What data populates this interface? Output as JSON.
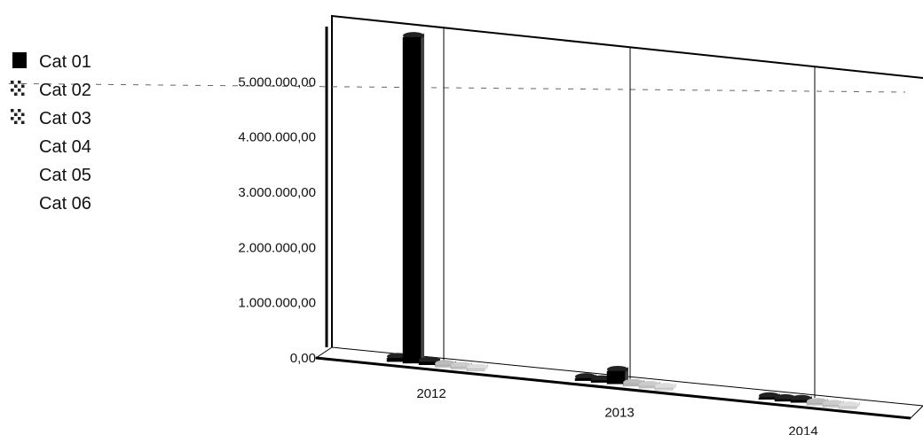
{
  "chart_data": {
    "type": "bar",
    "title": "",
    "xlabel": "",
    "ylabel": "",
    "categories": [
      "2012",
      "2013",
      "2014"
    ],
    "ylim": [
      0,
      6000000
    ],
    "yticks": [
      "0,00",
      "1.000.000,00",
      "2.000.000,00",
      "3.000.000,00",
      "4.000.000,00",
      "5.000.000,00"
    ],
    "grid": true,
    "legend_position": "top-left",
    "series": [
      {
        "name": "Cat 01",
        "color": "#000000",
        "values": [
          60000,
          40000,
          30000
        ]
      },
      {
        "name": "Cat 02",
        "color": "#000000",
        "values": [
          5900000,
          30000,
          25000
        ]
      },
      {
        "name": "Cat 03",
        "color": "#000000",
        "values": [
          50000,
          230000,
          40000
        ]
      },
      {
        "name": "Cat 04",
        "color": "#bbbbbb",
        "values": [
          20000,
          20000,
          15000
        ]
      },
      {
        "name": "Cat 05",
        "color": "#cccccc",
        "values": [
          15000,
          15000,
          10000
        ]
      },
      {
        "name": "Cat 06",
        "color": "#dddddd",
        "values": [
          10000,
          10000,
          10000
        ]
      }
    ]
  }
}
